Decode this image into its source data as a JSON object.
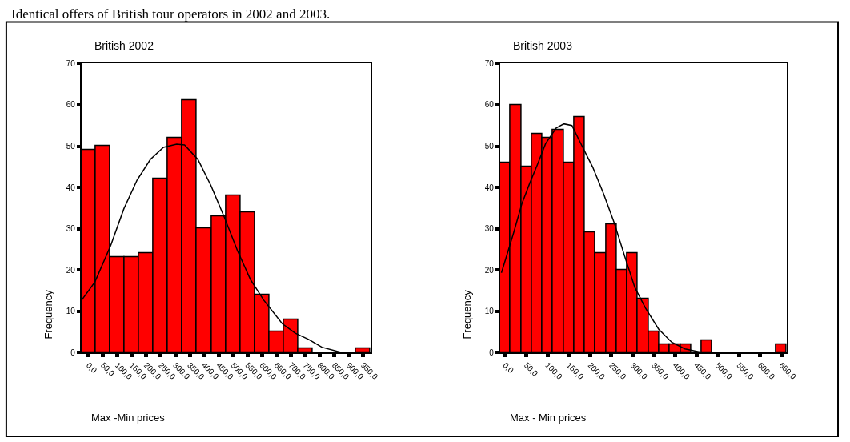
{
  "chart_data": [
    {
      "type": "histogram",
      "title": "British 2002",
      "xlabel": "Max -Min prices",
      "ylabel": "Frequency",
      "annotations": [
        "Identical offers of British tour operators in 2002 and 2003."
      ],
      "bins": [
        -25,
        25,
        75,
        125,
        175,
        225,
        275,
        325,
        375,
        425,
        475,
        525,
        575,
        625,
        675,
        725,
        775,
        825,
        875,
        925,
        975
      ],
      "values": [
        49,
        50,
        23,
        23,
        24,
        42,
        52,
        61,
        30,
        33,
        38,
        34,
        14,
        5,
        8,
        1,
        0,
        0,
        0,
        1
      ],
      "color": "#ff0000",
      "series": [
        {
          "type": "line",
          "color": "#000000",
          "x": [
            -24,
            22,
            77,
            122,
            168,
            214,
            259,
            305,
            332,
            378,
            423,
            469,
            515,
            560,
            606,
            670,
            715,
            761,
            807,
            870,
            952
          ],
          "values": [
            12.7,
            17.1,
            26,
            34.8,
            41.8,
            46.8,
            49.7,
            50.5,
            50.3,
            46.8,
            40.5,
            32.9,
            24.7,
            17.7,
            12.7,
            7,
            4.7,
            3.2,
            1.3,
            0.1,
            0
          ]
        }
      ],
      "xlim": [
        -25,
        975
      ],
      "xticks": [
        {
          "value": 0,
          "label": "0,0"
        },
        {
          "value": 50,
          "label": "50,0"
        },
        {
          "value": 100,
          "label": "100,0"
        },
        {
          "value": 150,
          "label": "150,0"
        },
        {
          "value": 200,
          "label": "200,0"
        },
        {
          "value": 250,
          "label": "250,0"
        },
        {
          "value": 300,
          "label": "300,0"
        },
        {
          "value": 350,
          "label": "350,0"
        },
        {
          "value": 400,
          "label": "400,0"
        },
        {
          "value": 450,
          "label": "450,0"
        },
        {
          "value": 500,
          "label": "500,0"
        },
        {
          "value": 550,
          "label": "550,0"
        },
        {
          "value": 600,
          "label": "600,0"
        },
        {
          "value": 650,
          "label": "650,0"
        },
        {
          "value": 700,
          "label": "700,0"
        },
        {
          "value": 750,
          "label": "750,0"
        },
        {
          "value": 800,
          "label": "800,0"
        },
        {
          "value": 850,
          "label": "850,0"
        },
        {
          "value": 900,
          "label": "900,0"
        },
        {
          "value": 950,
          "label": "950,0"
        }
      ],
      "ylim": [
        0,
        70
      ],
      "yticks": [
        0,
        10,
        20,
        30,
        40,
        50,
        60,
        70
      ]
    },
    {
      "type": "histogram",
      "title": "British 2003",
      "xlabel": "Max - Min prices",
      "ylabel": "Frequency",
      "bins": [
        -12.5,
        12.5,
        37.5,
        62.5,
        87.5,
        112.5,
        137.5,
        162.5,
        187.5,
        212.5,
        237.5,
        262.5,
        287.5,
        312.5,
        337.5,
        362.5,
        387.5,
        412.5,
        437.5,
        462.5,
        487.5,
        512.5,
        537.5,
        562.5,
        587.5,
        612.5,
        637.5,
        662.5
      ],
      "values": [
        46,
        60,
        45,
        53,
        52,
        54,
        46,
        57,
        29,
        24,
        31,
        20,
        24,
        13,
        5,
        2,
        2,
        2,
        0,
        3,
        0,
        0,
        0,
        0,
        0,
        0,
        2
      ],
      "color": "#ff0000",
      "series": [
        {
          "type": "line",
          "color": "#000000",
          "x": [
            -9,
            5,
            20,
            39,
            58,
            76,
            95,
            120,
            138,
            157,
            181,
            206,
            231,
            256,
            281,
            305,
            330,
            361,
            392,
            423,
            460,
            491
          ],
          "values": [
            19.3,
            24,
            29.1,
            36,
            41.1,
            45.6,
            50.6,
            54.4,
            55.4,
            55,
            50,
            44.9,
            38.6,
            31.6,
            23.4,
            15.8,
            10.8,
            5.7,
            2.5,
            0.9,
            0.1,
            0
          ]
        }
      ],
      "xlim": [
        -12.5,
        662.5
      ],
      "xticks": [
        {
          "value": 0,
          "label": "0,0"
        },
        {
          "value": 50,
          "label": "50,0"
        },
        {
          "value": 100,
          "label": "100,0"
        },
        {
          "value": 150,
          "label": "150,0"
        },
        {
          "value": 200,
          "label": "200,0"
        },
        {
          "value": 250,
          "label": "250,0"
        },
        {
          "value": 300,
          "label": "300,0"
        },
        {
          "value": 350,
          "label": "350,0"
        },
        {
          "value": 400,
          "label": "400,0"
        },
        {
          "value": 450,
          "label": "450,0"
        },
        {
          "value": 500,
          "label": "500,0"
        },
        {
          "value": 550,
          "label": "550,0"
        },
        {
          "value": 600,
          "label": "600,0"
        },
        {
          "value": 650,
          "label": "650,0"
        }
      ],
      "ylim": [
        0,
        70
      ],
      "yticks": [
        0,
        10,
        20,
        30,
        40,
        50,
        60,
        70
      ]
    }
  ]
}
